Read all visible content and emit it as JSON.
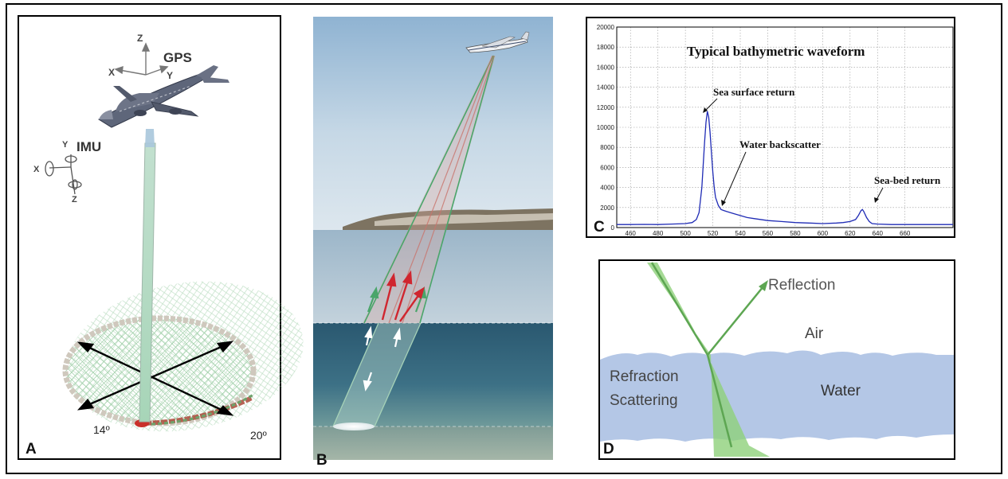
{
  "panel_a": {
    "letter": "A",
    "gps_label": "GPS",
    "imu_label": "IMU",
    "axis_z": "Z",
    "axis_x": "X",
    "axis_y": "Y",
    "angle_left": "14º",
    "angle_right": "20º"
  },
  "panel_b": {
    "letter": "B"
  },
  "panel_c": {
    "letter": "C",
    "title": "Typical bathymetric waveform",
    "annotations": {
      "surface": "Sea surface return",
      "backscatter": "Water backscatter",
      "seabed": "Sea-bed return"
    }
  },
  "panel_d": {
    "letter": "D",
    "reflection": "Reflection",
    "air": "Air",
    "water": "Water",
    "refraction": "Refraction",
    "scattering": "Scattering"
  },
  "chart_data": {
    "type": "line",
    "title": "Typical bathymetric waveform",
    "xlabel": "",
    "ylabel": "",
    "xlim": [
      450,
      695
    ],
    "ylim": [
      0,
      20000
    ],
    "grid": true,
    "x_ticks": [
      460,
      480,
      500,
      520,
      540,
      560,
      580,
      600,
      620,
      640,
      660
    ],
    "y_ticks": [
      0,
      2000,
      4000,
      6000,
      8000,
      10000,
      12000,
      14000,
      16000,
      18000,
      20000
    ],
    "series": [
      {
        "color": "#1f2bb5",
        "x": [
          450,
          460,
          470,
          480,
          490,
          500,
          505,
          508,
          510,
          512,
          514,
          515,
          516,
          517,
          518,
          519,
          520,
          521,
          522,
          524,
          526,
          528,
          530,
          535,
          540,
          545,
          550,
          560,
          570,
          580,
          590,
          600,
          610,
          615,
          620,
          624,
          626,
          628,
          629,
          630,
          632,
          634,
          636,
          640,
          650,
          660,
          670,
          680,
          695
        ],
        "y": [
          300,
          300,
          320,
          300,
          350,
          400,
          500,
          800,
          1500,
          4000,
          8500,
          10500,
          11600,
          11000,
          9500,
          7500,
          5500,
          4000,
          3000,
          2200,
          1800,
          1700,
          1600,
          1400,
          1200,
          1000,
          900,
          700,
          600,
          500,
          450,
          400,
          450,
          500,
          600,
          800,
          1200,
          1700,
          1800,
          1600,
          1000,
          600,
          400,
          350,
          300,
          300,
          300,
          300,
          300
        ]
      }
    ],
    "annotations": [
      "Sea surface return",
      "Water backscatter",
      "Sea-bed return"
    ]
  }
}
